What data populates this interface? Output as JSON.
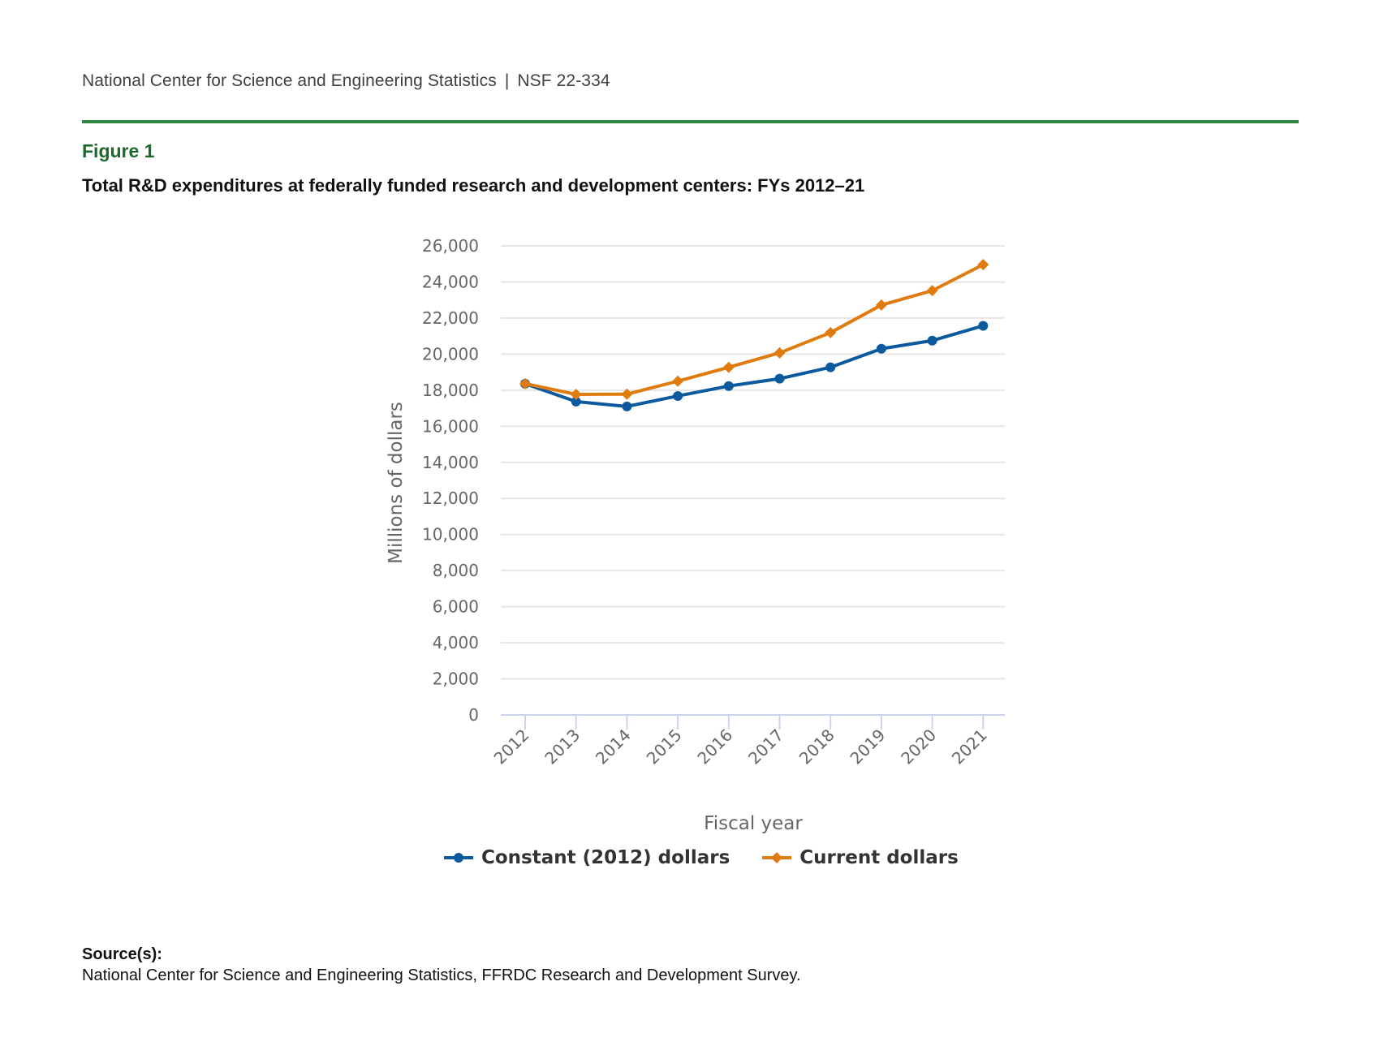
{
  "header": {
    "organization": "National Center for Science and Engineering Statistics",
    "separator": "|",
    "report_id": "NSF 22-334"
  },
  "figure": {
    "label": "Figure 1",
    "title": "Total R&D expenditures at federally funded research and development centers: FYs 2012–21"
  },
  "colors": {
    "rule": "#2e8540",
    "figure_label": "#1a6b2a",
    "constant": "#0b5a9e",
    "current": "#e07b0f",
    "grid": "#e6e6e6",
    "axis": "#ccd6eb"
  },
  "chart_data": {
    "type": "line",
    "title": "Total R&D expenditures at federally funded research and development centers: FYs 2012–21",
    "xlabel": "Fiscal year",
    "ylabel": "Millions of dollars",
    "categories": [
      "2012",
      "2013",
      "2014",
      "2015",
      "2016",
      "2017",
      "2018",
      "2019",
      "2020",
      "2021"
    ],
    "ylim": [
      0,
      26000
    ],
    "yticks": [
      0,
      2000,
      4000,
      6000,
      8000,
      10000,
      12000,
      14000,
      16000,
      18000,
      20000,
      22000,
      24000,
      26000
    ],
    "ytick_labels": [
      "0",
      "2,000",
      "4,000",
      "6,000",
      "8,000",
      "10,000",
      "12,000",
      "14,000",
      "16,000",
      "18,000",
      "20,000",
      "22,000",
      "24,000",
      "26,000"
    ],
    "grid": true,
    "legend_position": "bottom-center",
    "series": [
      {
        "name": "Constant (2012) dollars",
        "marker": "circle",
        "color": "#0b5a9e",
        "values": [
          18360,
          17370,
          17100,
          17680,
          18230,
          18640,
          19270,
          20300,
          20750,
          21570
        ]
      },
      {
        "name": "Current dollars",
        "marker": "diamond",
        "color": "#e07b0f",
        "values": [
          18360,
          17770,
          17780,
          18500,
          19270,
          20070,
          21190,
          22720,
          23520,
          24960
        ]
      }
    ]
  },
  "source": {
    "label": "Source(s):",
    "text": "National Center for Science and Engineering Statistics, FFRDC Research and Development Survey."
  }
}
